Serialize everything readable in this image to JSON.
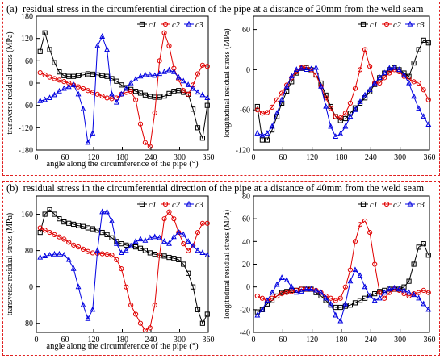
{
  "figure": {
    "panel_a_label": "(a)",
    "panel_a_title": "residual stress in the circumferential direction of the pipe at a distance of 20mm from the weld seam",
    "panel_b_label": "(b)",
    "panel_b_title": "residual stress in the circumferential direction of the pipe at a distance of 40mm from the weld seam"
  },
  "colors": {
    "c1": "#000000",
    "c2": "#e00000",
    "c3": "#0000e0",
    "frame": "#e02020"
  },
  "chart_data": [
    {
      "id": "a-left",
      "type": "line",
      "xlabel": "angle along the circumference of the pipe (°)",
      "ylabel": "transverse residual stress (MPa)",
      "xlim": [
        0,
        360
      ],
      "ylim": [
        -180,
        180
      ],
      "xticks": [
        0,
        60,
        120,
        180,
        240,
        300,
        360
      ],
      "yticks": [
        -180,
        -120,
        -60,
        0,
        60,
        120,
        180
      ],
      "legend": [
        "c1",
        "c2",
        "c3"
      ],
      "legend_position": "top-right",
      "series": [
        {
          "name": "c1",
          "color": "#000000",
          "marker": "square",
          "x": [
            8,
            18,
            28,
            38,
            48,
            58,
            68,
            78,
            88,
            98,
            108,
            118,
            128,
            138,
            148,
            158,
            168,
            178,
            188,
            198,
            208,
            218,
            228,
            238,
            248,
            258,
            268,
            278,
            288,
            298,
            308,
            318,
            328,
            338,
            348,
            358
          ],
          "y": [
            85,
            135,
            90,
            55,
            30,
            20,
            18,
            18,
            20,
            22,
            25,
            24,
            22,
            20,
            18,
            12,
            5,
            -5,
            -12,
            -17,
            -22,
            -27,
            -32,
            -36,
            -38,
            -38,
            -35,
            -28,
            -22,
            -20,
            -25,
            -30,
            -70,
            -120,
            -148,
            -60
          ]
        },
        {
          "name": "c2",
          "color": "#e00000",
          "marker": "circle",
          "x": [
            8,
            18,
            28,
            38,
            48,
            58,
            68,
            78,
            88,
            98,
            108,
            118,
            128,
            138,
            148,
            158,
            168,
            178,
            188,
            198,
            208,
            218,
            228,
            238,
            248,
            258,
            268,
            278,
            288,
            298,
            308,
            318,
            328,
            338,
            348,
            358
          ],
          "y": [
            28,
            22,
            16,
            12,
            8,
            4,
            0,
            -5,
            -10,
            -15,
            -20,
            -25,
            -30,
            -35,
            -40,
            -42,
            -40,
            -30,
            -25,
            -22,
            -45,
            -110,
            -160,
            -170,
            -80,
            60,
            135,
            100,
            40,
            10,
            -20,
            -30,
            -5,
            25,
            48,
            45
          ]
        },
        {
          "name": "c3",
          "color": "#0000e0",
          "marker": "triangle",
          "x": [
            8,
            18,
            28,
            38,
            48,
            58,
            68,
            78,
            88,
            98,
            108,
            118,
            128,
            138,
            148,
            158,
            168,
            178,
            188,
            198,
            208,
            218,
            228,
            238,
            248,
            258,
            268,
            278,
            288,
            298,
            308,
            318,
            328,
            338,
            348,
            358
          ],
          "y": [
            -48,
            -45,
            -40,
            -32,
            -22,
            -15,
            -10,
            -5,
            -30,
            -70,
            -160,
            -135,
            100,
            125,
            90,
            -30,
            -52,
            -30,
            -15,
            0,
            10,
            18,
            22,
            22,
            20,
            25,
            30,
            35,
            30,
            15,
            5,
            -5,
            -15,
            -25,
            -32,
            -40
          ]
        }
      ]
    },
    {
      "id": "a-right",
      "type": "line",
      "xlabel": "",
      "ylabel": "longitudinal residual stress (MPa)",
      "xlim": [
        0,
        360
      ],
      "ylim": [
        -120,
        80
      ],
      "xticks": [
        0,
        60,
        120,
        180,
        240,
        300,
        360
      ],
      "yticks": [
        -120,
        -60,
        0,
        60
      ],
      "legend": [
        "c1",
        "c2",
        "c3"
      ],
      "legend_position": "top-right",
      "series": [
        {
          "name": "c1",
          "color": "#000000",
          "marker": "square",
          "x": [
            8,
            18,
            28,
            38,
            48,
            58,
            68,
            78,
            88,
            98,
            108,
            118,
            128,
            138,
            148,
            158,
            168,
            178,
            188,
            198,
            208,
            218,
            228,
            238,
            248,
            258,
            268,
            278,
            288,
            298,
            308,
            318,
            328,
            338,
            348,
            358
          ],
          "y": [
            -55,
            -105,
            -105,
            -90,
            -70,
            -50,
            -32,
            -18,
            -5,
            2,
            3,
            0,
            -8,
            -20,
            -38,
            -55,
            -70,
            -76,
            -73,
            -65,
            -57,
            -50,
            -42,
            -33,
            -22,
            -12,
            -5,
            0,
            3,
            0,
            -5,
            -10,
            10,
            30,
            44,
            40
          ]
        },
        {
          "name": "c2",
          "color": "#e00000",
          "marker": "circle",
          "x": [
            8,
            18,
            28,
            38,
            48,
            58,
            68,
            78,
            88,
            98,
            108,
            118,
            128,
            138,
            148,
            158,
            168,
            178,
            188,
            198,
            208,
            218,
            228,
            238,
            248,
            258,
            268,
            278,
            288,
            298,
            308,
            318,
            328,
            338,
            348,
            358
          ],
          "y": [
            -60,
            -65,
            -64,
            -56,
            -45,
            -35,
            -23,
            -12,
            -3,
            3,
            4,
            0,
            -8,
            -25,
            -42,
            -58,
            -70,
            -72,
            -65,
            -50,
            -28,
            0,
            30,
            5,
            -20,
            -20,
            -12,
            -5,
            0,
            -3,
            -10,
            -14,
            -18,
            -20,
            -30,
            -45
          ]
        },
        {
          "name": "c3",
          "color": "#0000e0",
          "marker": "triangle",
          "x": [
            8,
            18,
            28,
            38,
            48,
            58,
            68,
            78,
            88,
            98,
            108,
            118,
            128,
            138,
            148,
            158,
            168,
            178,
            188,
            198,
            208,
            218,
            228,
            238,
            248,
            258,
            268,
            278,
            288,
            298,
            308,
            318,
            328,
            338,
            348,
            358
          ],
          "y": [
            -95,
            -98,
            -95,
            -85,
            -65,
            -45,
            -25,
            -10,
            0,
            2,
            0,
            1,
            3,
            -25,
            -55,
            -85,
            -100,
            -96,
            -85,
            -70,
            -60,
            -48,
            -38,
            -30,
            -20,
            -12,
            -5,
            2,
            3,
            0,
            -8,
            -20,
            -40,
            -58,
            -70,
            -82
          ]
        }
      ]
    },
    {
      "id": "b-left",
      "type": "line",
      "xlabel": "angle along the circumference of the pipe (°)",
      "ylabel": "transverse residual stress (MPa)",
      "xlim": [
        0,
        360
      ],
      "ylim": [
        -100,
        200
      ],
      "xticks": [
        0,
        60,
        120,
        180,
        240,
        300,
        360
      ],
      "yticks": [
        -80,
        0,
        80,
        160
      ],
      "legend": [
        "c1",
        "c2",
        "c3"
      ],
      "legend_position": "top-right",
      "series": [
        {
          "name": "c1",
          "color": "#000000",
          "marker": "square",
          "x": [
            8,
            18,
            28,
            38,
            48,
            58,
            68,
            78,
            88,
            98,
            108,
            118,
            128,
            138,
            148,
            158,
            168,
            178,
            188,
            198,
            208,
            218,
            228,
            238,
            248,
            258,
            268,
            278,
            288,
            298,
            308,
            318,
            328,
            338,
            348,
            358
          ],
          "y": [
            120,
            160,
            170,
            160,
            150,
            143,
            140,
            138,
            135,
            133,
            130,
            128,
            125,
            120,
            115,
            108,
            100,
            95,
            92,
            90,
            88,
            85,
            80,
            75,
            72,
            70,
            68,
            65,
            63,
            60,
            50,
            30,
            0,
            -50,
            -80,
            -60
          ]
        },
        {
          "name": "c2",
          "color": "#e00000",
          "marker": "circle",
          "x": [
            8,
            18,
            28,
            38,
            48,
            58,
            68,
            78,
            88,
            98,
            108,
            118,
            128,
            138,
            148,
            158,
            168,
            178,
            188,
            198,
            208,
            218,
            228,
            238,
            248,
            258,
            268,
            278,
            288,
            298,
            308,
            318,
            328,
            338,
            348,
            358
          ],
          "y": [
            130,
            125,
            120,
            115,
            110,
            105,
            98,
            92,
            88,
            83,
            78,
            75,
            74,
            73,
            72,
            70,
            60,
            40,
            0,
            -40,
            -60,
            -80,
            -95,
            -90,
            -40,
            70,
            150,
            165,
            150,
            120,
            95,
            80,
            90,
            120,
            140,
            140
          ]
        },
        {
          "name": "c3",
          "color": "#0000e0",
          "marker": "triangle",
          "x": [
            8,
            18,
            28,
            38,
            48,
            58,
            68,
            78,
            88,
            98,
            108,
            118,
            128,
            138,
            148,
            158,
            168,
            178,
            188,
            198,
            208,
            218,
            228,
            238,
            248,
            258,
            268,
            278,
            288,
            298,
            308,
            318,
            328,
            338,
            348,
            358
          ],
          "y": [
            65,
            68,
            70,
            72,
            72,
            70,
            60,
            40,
            0,
            -40,
            -70,
            -50,
            80,
            165,
            165,
            145,
            95,
            75,
            80,
            90,
            100,
            105,
            102,
            108,
            110,
            108,
            100,
            95,
            110,
            120,
            115,
            100,
            90,
            80,
            75,
            70
          ]
        }
      ]
    },
    {
      "id": "b-right",
      "type": "line",
      "xlabel": "",
      "ylabel": "longitudinal residual stress (MPa)",
      "xlim": [
        0,
        360
      ],
      "ylim": [
        -40,
        80
      ],
      "xticks": [
        0,
        60,
        120,
        180,
        240,
        300,
        360
      ],
      "yticks": [
        -40,
        -20,
        0,
        20,
        40,
        60,
        80
      ],
      "legend": [
        "c1",
        "c2",
        "c3"
      ],
      "legend_position": "top-right",
      "series": [
        {
          "name": "c1",
          "color": "#000000",
          "marker": "square",
          "x": [
            8,
            18,
            28,
            38,
            48,
            58,
            68,
            78,
            88,
            98,
            108,
            118,
            128,
            138,
            148,
            158,
            168,
            178,
            188,
            198,
            208,
            218,
            228,
            238,
            248,
            258,
            268,
            278,
            288,
            298,
            308,
            318,
            328,
            338,
            348,
            358
          ],
          "y": [
            -22,
            -20,
            -15,
            -12,
            -8,
            -5,
            -4,
            -3,
            -3,
            -2,
            -2,
            -2,
            -5,
            -8,
            -12,
            -16,
            -18,
            -18,
            -17,
            -16,
            -14,
            -12,
            -10,
            -8,
            -6,
            -4,
            -3,
            -2,
            -2,
            -2,
            0,
            5,
            20,
            35,
            38,
            28
          ]
        },
        {
          "name": "c2",
          "color": "#e00000",
          "marker": "circle",
          "x": [
            8,
            18,
            28,
            38,
            48,
            58,
            68,
            78,
            88,
            98,
            108,
            118,
            128,
            138,
            148,
            158,
            168,
            178,
            188,
            198,
            208,
            218,
            228,
            238,
            248,
            258,
            268,
            278,
            288,
            298,
            308,
            318,
            328,
            338,
            348,
            358
          ],
          "y": [
            -8,
            -10,
            -12,
            -10,
            -8,
            -6,
            -5,
            -4,
            -3,
            -2,
            -2,
            -2,
            -3,
            -5,
            -8,
            -10,
            -12,
            -10,
            0,
            15,
            40,
            55,
            58,
            48,
            20,
            -5,
            -10,
            -5,
            -2,
            -3,
            -6,
            -8,
            -6,
            -5,
            -3,
            -5
          ]
        },
        {
          "name": "c3",
          "color": "#0000e0",
          "marker": "triangle",
          "x": [
            8,
            18,
            28,
            38,
            48,
            58,
            68,
            78,
            88,
            98,
            108,
            118,
            128,
            138,
            148,
            158,
            168,
            178,
            188,
            198,
            208,
            218,
            228,
            238,
            248,
            258,
            268,
            278,
            288,
            298,
            308,
            318,
            328,
            338,
            348,
            358
          ],
          "y": [
            -25,
            -20,
            -12,
            -5,
            2,
            8,
            6,
            0,
            -5,
            -4,
            -2,
            -2,
            -3,
            -5,
            -10,
            -15,
            -25,
            -30,
            -15,
            5,
            15,
            10,
            0,
            -8,
            -12,
            -10,
            -5,
            -2,
            -1,
            -2,
            -3,
            -5,
            -7,
            -10,
            -15,
            -20
          ]
        }
      ]
    }
  ]
}
